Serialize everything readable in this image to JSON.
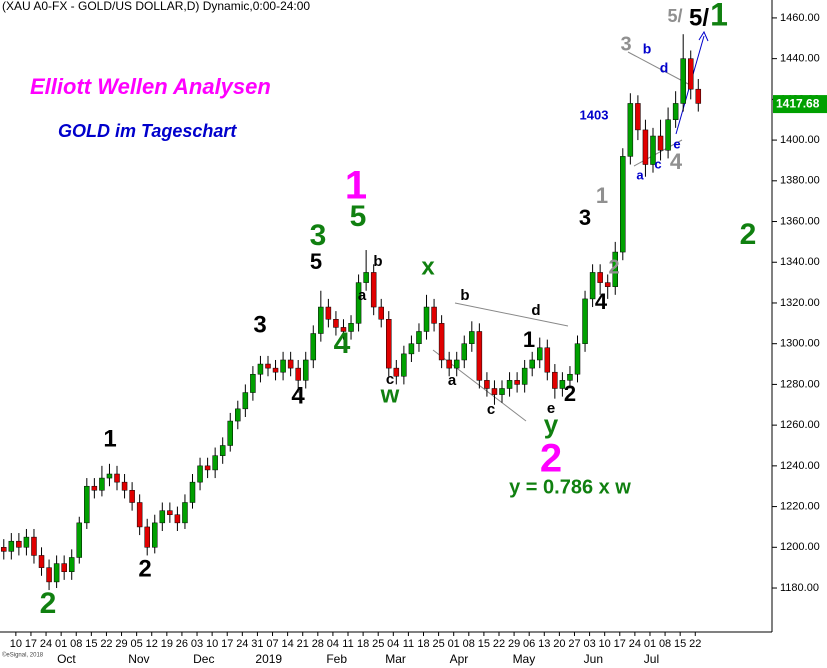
{
  "chart_data": {
    "type": "candlestick",
    "title": "(XAU A0-FX - GOLD/US DOLLAR,D) Dynamic,0:00-24:00",
    "copyright": "©eSignal, 2018",
    "up_color": "#00a000",
    "down_color": "#e00000",
    "wick_color": "#000000",
    "ylim": [
      1158.4,
      1468.8
    ],
    "yticks": [
      {
        "value": 1180,
        "label": "1180.00"
      },
      {
        "value": 1200,
        "label": "1200.00"
      },
      {
        "value": 1220,
        "label": "1220.00"
      },
      {
        "value": 1240,
        "label": "1240.00"
      },
      {
        "value": 1260,
        "label": "1260.00"
      },
      {
        "value": 1280,
        "label": "1280.00"
      },
      {
        "value": 1300,
        "label": "1300.00"
      },
      {
        "value": 1320,
        "label": "1320.00"
      },
      {
        "value": 1340,
        "label": "1340.00"
      },
      {
        "value": 1360,
        "label": "1360.00"
      },
      {
        "value": 1380,
        "label": "1380.00"
      },
      {
        "value": 1400,
        "label": "1400.00"
      },
      {
        "value": 1420,
        "label": "1420.00"
      },
      {
        "value": 1440,
        "label": "1440.00"
      },
      {
        "value": 1460,
        "label": "1460.00"
      }
    ],
    "xlim": [
      -0.5,
      101.5
    ],
    "xticks": [
      {
        "value": 1.6,
        "label": "10"
      },
      {
        "value": 3.6,
        "label": "17"
      },
      {
        "value": 5.6,
        "label": "24"
      },
      {
        "value": 7.6,
        "label": "01"
      },
      {
        "value": 9.6,
        "label": "08"
      },
      {
        "value": 11.6,
        "label": "15"
      },
      {
        "value": 13.6,
        "label": "22"
      },
      {
        "value": 15.6,
        "label": "29"
      },
      {
        "value": 17.6,
        "label": "05"
      },
      {
        "value": 19.6,
        "label": "12"
      },
      {
        "value": 21.6,
        "label": "19"
      },
      {
        "value": 23.6,
        "label": "26"
      },
      {
        "value": 25.6,
        "label": "03"
      },
      {
        "value": 27.6,
        "label": "10"
      },
      {
        "value": 29.6,
        "label": "17"
      },
      {
        "value": 31.6,
        "label": "24"
      },
      {
        "value": 33.6,
        "label": "31"
      },
      {
        "value": 35.6,
        "label": "07"
      },
      {
        "value": 37.6,
        "label": "14"
      },
      {
        "value": 39.6,
        "label": "21"
      },
      {
        "value": 41.6,
        "label": "28"
      },
      {
        "value": 43.6,
        "label": "04"
      },
      {
        "value": 45.6,
        "label": "11"
      },
      {
        "value": 47.6,
        "label": "18"
      },
      {
        "value": 49.6,
        "label": "25"
      },
      {
        "value": 51.6,
        "label": "04"
      },
      {
        "value": 53.6,
        "label": "11"
      },
      {
        "value": 55.6,
        "label": "18"
      },
      {
        "value": 57.6,
        "label": "25"
      },
      {
        "value": 59.6,
        "label": "01"
      },
      {
        "value": 61.6,
        "label": "08"
      },
      {
        "value": 63.6,
        "label": "15"
      },
      {
        "value": 65.6,
        "label": "22"
      },
      {
        "value": 67.6,
        "label": "29"
      },
      {
        "value": 69.6,
        "label": "06"
      },
      {
        "value": 71.6,
        "label": "13"
      },
      {
        "value": 73.6,
        "label": "20"
      },
      {
        "value": 75.6,
        "label": "27"
      },
      {
        "value": 77.6,
        "label": "03"
      },
      {
        "value": 79.6,
        "label": "10"
      },
      {
        "value": 81.6,
        "label": "17"
      },
      {
        "value": 83.6,
        "label": "24"
      },
      {
        "value": 85.6,
        "label": "01"
      },
      {
        "value": 87.6,
        "label": "08"
      },
      {
        "value": 89.6,
        "label": "15"
      },
      {
        "value": 91.6,
        "label": "22"
      }
    ],
    "xmonths": [
      {
        "value": 8.3,
        "label": "Oct"
      },
      {
        "value": 17.9,
        "label": "Nov"
      },
      {
        "value": 26.5,
        "label": "Dec"
      },
      {
        "value": 35.1,
        "label": "2019"
      },
      {
        "value": 44.1,
        "label": "Feb"
      },
      {
        "value": 51.9,
        "label": "Mar"
      },
      {
        "value": 60.3,
        "label": "Apr"
      },
      {
        "value": 68.9,
        "label": "May"
      },
      {
        "value": 78.1,
        "label": "Jun"
      },
      {
        "value": 85.8,
        "label": "Jul"
      }
    ],
    "last_price": 1417.68,
    "last_price_color": "#00a000",
    "x": [
      0,
      1,
      2,
      3,
      4,
      5,
      6,
      7,
      8,
      9,
      10,
      11,
      12,
      13,
      14,
      15,
      16,
      17,
      18,
      19,
      20,
      21,
      22,
      23,
      24,
      25,
      26,
      27,
      28,
      29,
      30,
      31,
      32,
      33,
      34,
      35,
      36,
      37,
      38,
      39,
      40,
      41,
      42,
      43,
      44,
      45,
      46,
      47,
      48,
      49,
      50,
      51,
      52,
      53,
      54,
      55,
      56,
      57,
      58,
      59,
      60,
      61,
      62,
      63,
      64,
      65,
      66,
      67,
      68,
      69,
      70,
      71,
      72,
      73,
      74,
      75,
      76,
      77,
      78,
      79,
      80,
      81,
      82,
      83,
      84,
      85,
      86,
      87,
      88,
      89,
      90,
      91,
      92
    ],
    "open": [
      1200,
      1198,
      1203,
      1200,
      1205,
      1196,
      1190,
      1183,
      1192,
      1188,
      1195,
      1212,
      1230,
      1228,
      1234,
      1236,
      1232,
      1228,
      1222,
      1210,
      1200,
      1212,
      1218,
      1216,
      1212,
      1222,
      1232,
      1240,
      1238,
      1245,
      1250,
      1262,
      1268,
      1276,
      1285,
      1290,
      1288,
      1286,
      1292,
      1288,
      1282,
      1292,
      1305,
      1318,
      1312,
      1308,
      1306,
      1310,
      1330,
      1335,
      1318,
      1312,
      1288,
      1284,
      1295,
      1300,
      1306,
      1318,
      1310,
      1292,
      1288,
      1292,
      1300,
      1306,
      1282,
      1278,
      1275,
      1278,
      1282,
      1280,
      1288,
      1292,
      1298,
      1286,
      1278,
      1282,
      1285,
      1300,
      1322,
      1335,
      1330,
      1328,
      1345,
      1392,
      1418,
      1405,
      1388,
      1402,
      1395,
      1410,
      1418,
      1440,
      1425
    ],
    "high": [
      1204,
      1207,
      1207,
      1209,
      1209,
      1200,
      1194,
      1196,
      1196,
      1199,
      1215,
      1234,
      1234,
      1240,
      1241,
      1240,
      1236,
      1232,
      1226,
      1214,
      1216,
      1222,
      1222,
      1220,
      1226,
      1236,
      1244,
      1244,
      1249,
      1254,
      1266,
      1272,
      1280,
      1289,
      1294,
      1294,
      1292,
      1296,
      1296,
      1292,
      1296,
      1309,
      1326,
      1322,
      1316,
      1312,
      1314,
      1334,
      1346,
      1339,
      1322,
      1316,
      1292,
      1299,
      1304,
      1310,
      1324,
      1322,
      1314,
      1296,
      1296,
      1304,
      1311,
      1310,
      1286,
      1282,
      1282,
      1286,
      1286,
      1292,
      1296,
      1303,
      1302,
      1290,
      1286,
      1289,
      1304,
      1326,
      1339,
      1339,
      1334,
      1350,
      1396,
      1423,
      1422,
      1410,
      1406,
      1410,
      1416,
      1424,
      1452,
      1444,
      1430
    ],
    "low": [
      1194,
      1194,
      1196,
      1196,
      1192,
      1186,
      1179,
      1180,
      1184,
      1184,
      1192,
      1209,
      1224,
      1225,
      1230,
      1228,
      1224,
      1218,
      1206,
      1196,
      1197,
      1208,
      1212,
      1208,
      1209,
      1219,
      1228,
      1234,
      1234,
      1241,
      1247,
      1258,
      1264,
      1272,
      1281,
      1284,
      1282,
      1282,
      1284,
      1276,
      1278,
      1288,
      1301,
      1308,
      1304,
      1302,
      1302,
      1306,
      1326,
      1314,
      1308,
      1284,
      1280,
      1280,
      1291,
      1296,
      1302,
      1306,
      1288,
      1284,
      1284,
      1288,
      1296,
      1278,
      1274,
      1270,
      1271,
      1274,
      1276,
      1276,
      1284,
      1288,
      1282,
      1273,
      1274,
      1278,
      1281,
      1296,
      1318,
      1324,
      1322,
      1324,
      1341,
      1388,
      1400,
      1382,
      1384,
      1390,
      1391,
      1406,
      1414,
      1420,
      1414
    ],
    "close": [
      1198,
      1203,
      1200,
      1205,
      1196,
      1190,
      1183,
      1192,
      1188,
      1195,
      1212,
      1230,
      1228,
      1234,
      1236,
      1232,
      1228,
      1222,
      1210,
      1200,
      1212,
      1218,
      1216,
      1212,
      1222,
      1232,
      1240,
      1238,
      1245,
      1250,
      1262,
      1268,
      1276,
      1285,
      1290,
      1288,
      1286,
      1292,
      1288,
      1282,
      1292,
      1305,
      1318,
      1312,
      1308,
      1306,
      1310,
      1330,
      1335,
      1318,
      1312,
      1288,
      1284,
      1295,
      1300,
      1306,
      1318,
      1310,
      1292,
      1288,
      1292,
      1300,
      1306,
      1282,
      1278,
      1275,
      1278,
      1282,
      1280,
      1288,
      1292,
      1298,
      1286,
      1278,
      1282,
      1285,
      1300,
      1322,
      1335,
      1330,
      1328,
      1345,
      1392,
      1418,
      1405,
      1388,
      1402,
      1395,
      1410,
      1418,
      1440,
      1425,
      1418
    ],
    "annotations": [
      {
        "text": "Elliott Wellen Analysen",
        "color": "#ff00ff"
      },
      {
        "text": "GOLD im Tageschart",
        "color": "#0000cc"
      },
      {
        "text": "2",
        "color": "#108010"
      },
      {
        "text": "2",
        "color": "#000000"
      },
      {
        "text": "1",
        "color": "#000000"
      },
      {
        "text": "3",
        "color": "#000000"
      },
      {
        "text": "4",
        "color": "#000000"
      },
      {
        "text": "5",
        "color": "#000000"
      },
      {
        "text": "3",
        "color": "#108010"
      },
      {
        "text": "4",
        "color": "#108010"
      },
      {
        "text": "5",
        "color": "#108010"
      },
      {
        "text": "1",
        "color": "#ff00ff"
      },
      {
        "text": "a",
        "color": "#000000"
      },
      {
        "text": "b",
        "color": "#000000"
      },
      {
        "text": "c",
        "color": "#000000"
      },
      {
        "text": "w",
        "color": "#108010"
      },
      {
        "text": "x",
        "color": "#108010"
      },
      {
        "text": "b",
        "color": "#000000"
      },
      {
        "text": "a",
        "color": "#000000"
      },
      {
        "text": "c",
        "color": "#000000"
      },
      {
        "text": "d",
        "color": "#000000"
      },
      {
        "text": "1",
        "color": "#000000"
      },
      {
        "text": "e",
        "color": "#000000"
      },
      {
        "text": "y",
        "color": "#108010"
      },
      {
        "text": "2",
        "color": "#000000"
      },
      {
        "text": "2",
        "color": "#ff00ff"
      },
      {
        "text": "y = 0.786 x w",
        "color": "#108010"
      },
      {
        "text": "3",
        "color": "#000000"
      },
      {
        "text": "1",
        "color": "#909090"
      },
      {
        "text": "2",
        "color": "#909090"
      },
      {
        "text": "4",
        "color": "#000000"
      },
      {
        "text": "1403",
        "color": "#0000cc"
      },
      {
        "text": "3",
        "color": "#909090"
      },
      {
        "text": "b",
        "color": "#0000cc"
      },
      {
        "text": "d",
        "color": "#0000cc"
      },
      {
        "text": "a",
        "color": "#0000cc"
      },
      {
        "text": "c",
        "color": "#0000cc"
      },
      {
        "text": "4",
        "color": "#909090"
      },
      {
        "text": "e",
        "color": "#0000cc"
      },
      {
        "text": "5/",
        "color": "#909090"
      },
      {
        "text": "5/",
        "color": "#000000"
      },
      {
        "text": "1",
        "color": "#108010"
      },
      {
        "text": "2",
        "color": "#108010"
      }
    ]
  }
}
